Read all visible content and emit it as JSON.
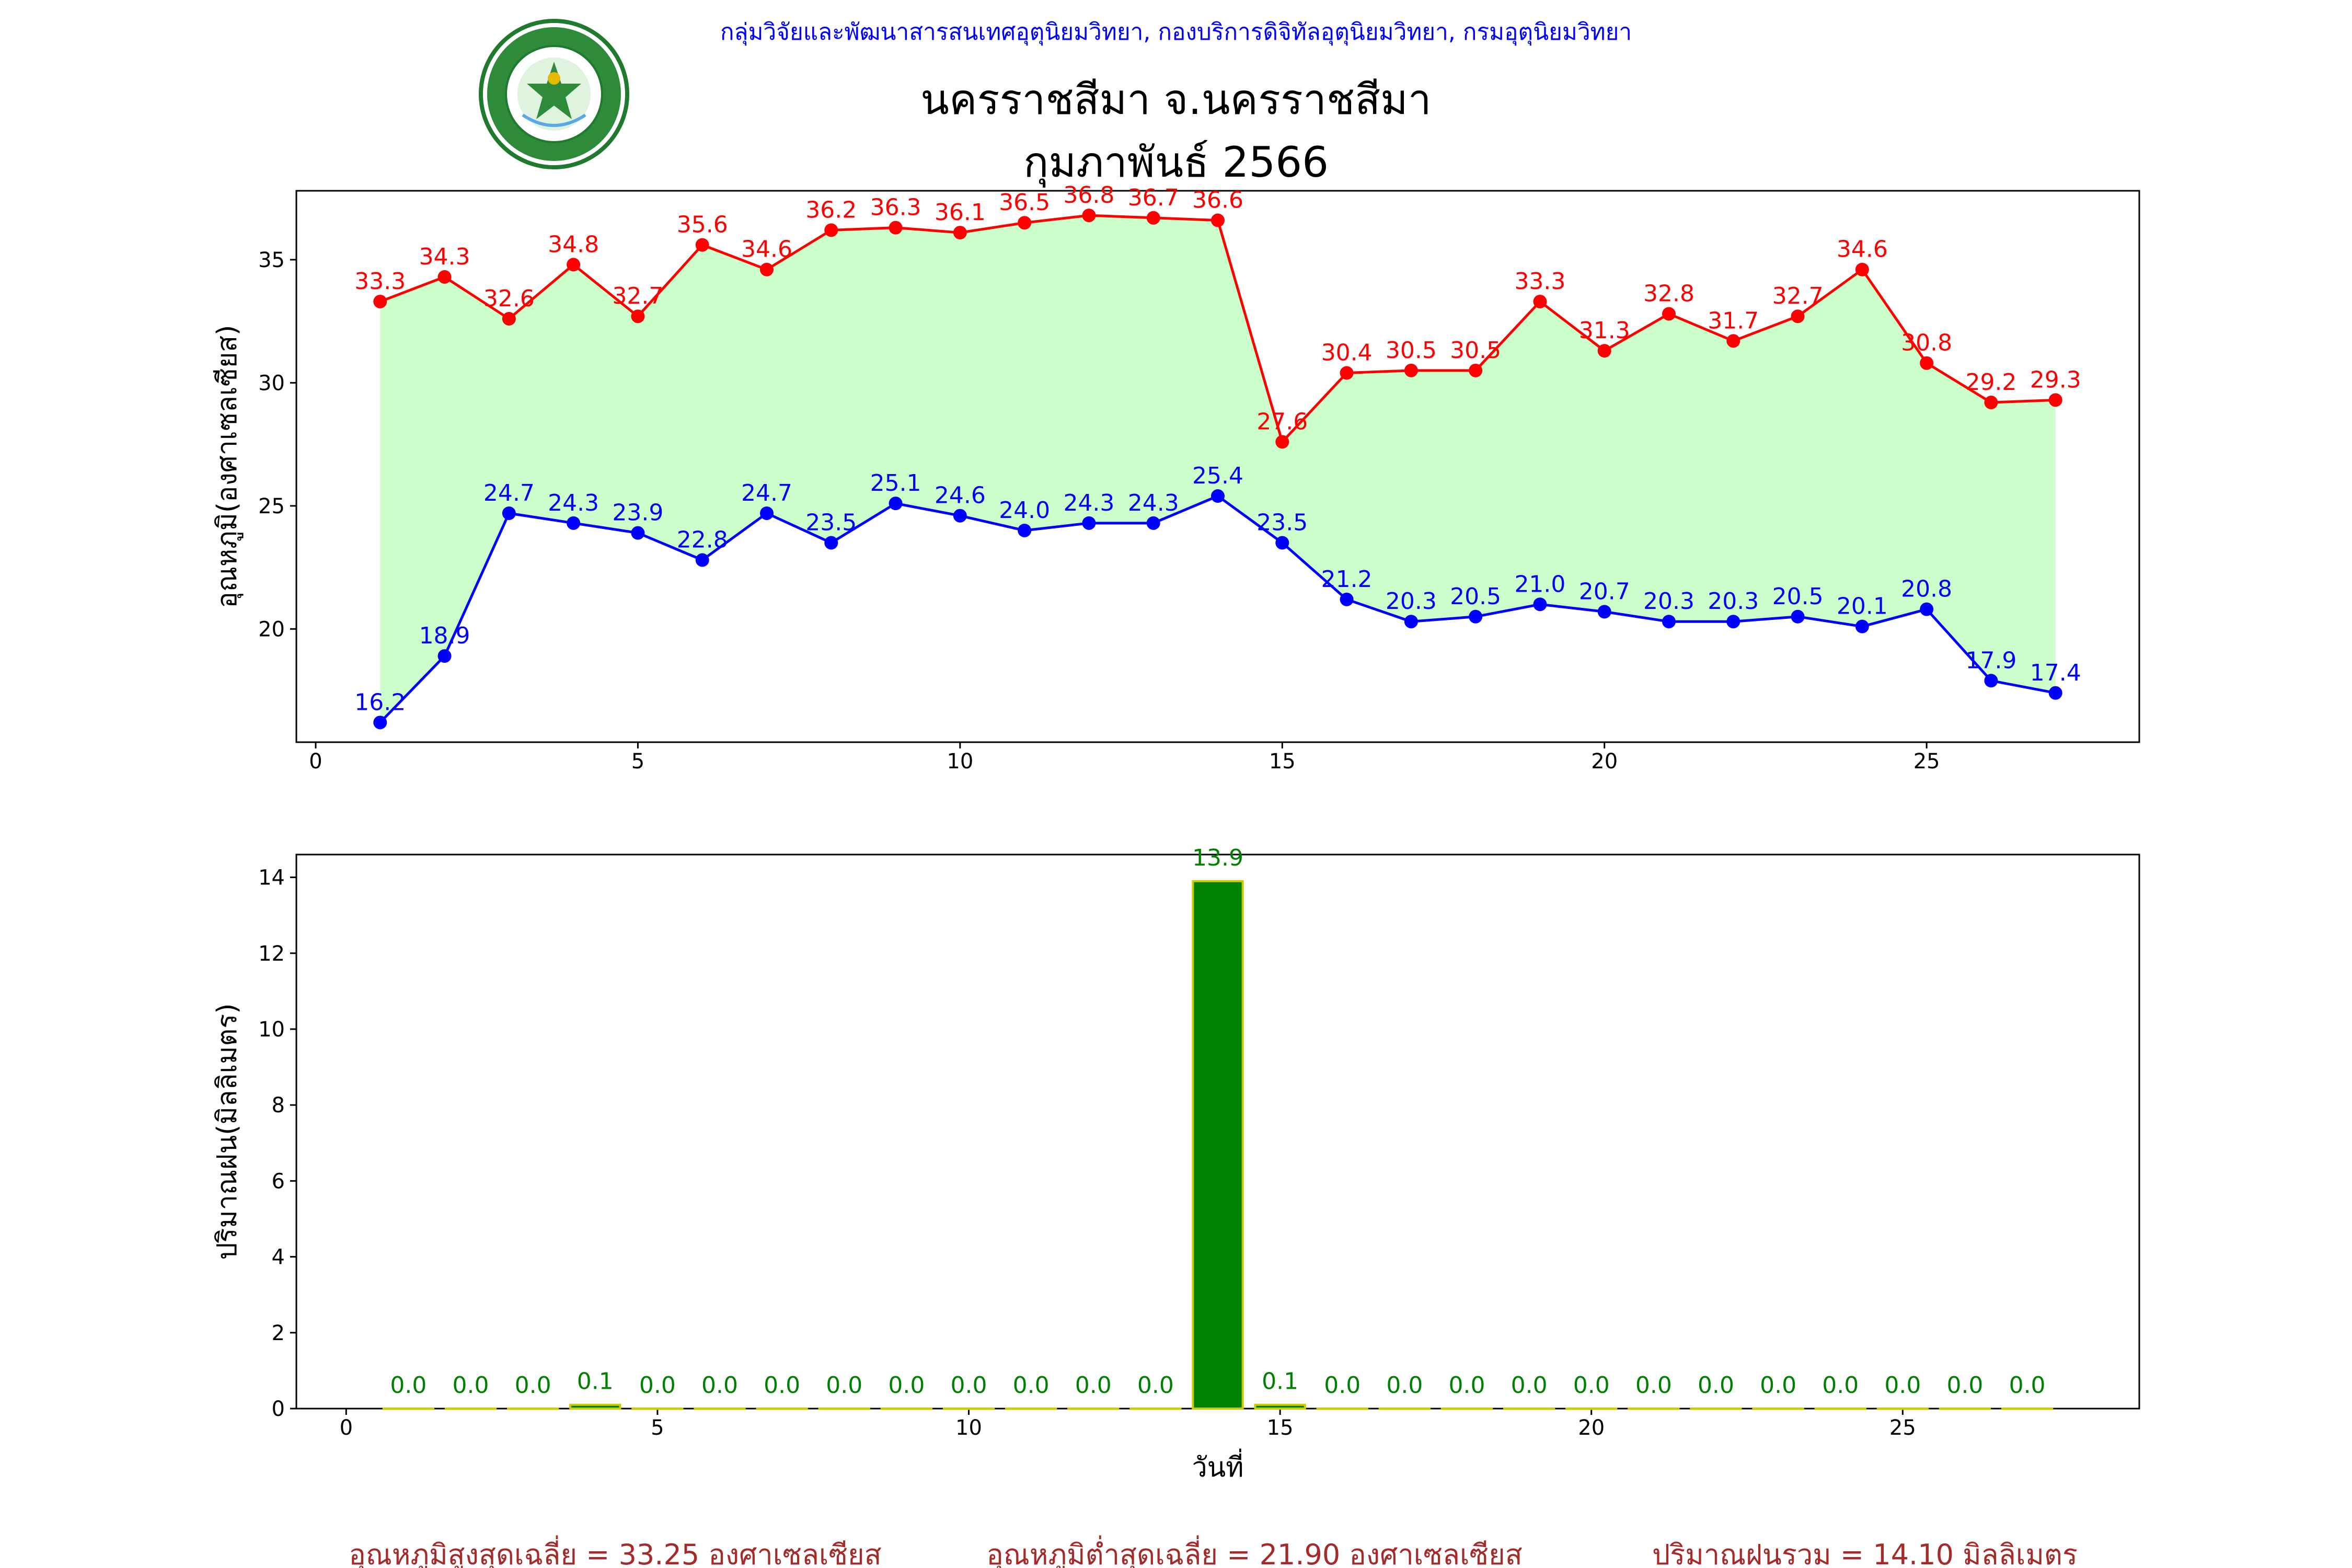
{
  "header": {
    "agency": "กลุ่มวิจัยและพัฒนาสารสนเทศอุตุนิยมวิทยา, กองบริการดิจิทัลอุตุนิยมวิทยา, กรมอุตุนิยมวิทยา",
    "station": "นครราชสีมา จ.นครราชสีมา",
    "period": "กุมภาพันธ์ 2566",
    "logo_text": "กรมอุตุนิยมวิทยา",
    "logo_text_en": "METEOROLOGICAL DEPARTMENT"
  },
  "colors": {
    "max_line": "#ff0000",
    "min_line": "#0000ff",
    "fill": "#ccffcc",
    "bar_fill": "#008000",
    "bar_edge": "#cccc00",
    "bar_label": "#008000",
    "footer": "#a52a2a",
    "agency": "#0000ff"
  },
  "chart_data": [
    {
      "type": "line",
      "ylabel": "อุณหภูมิ(องศาเซลเซียส)",
      "xlim": [
        -0.3,
        28.3
      ],
      "ylim": [
        15.4,
        37.8
      ],
      "xticks": [
        0,
        5,
        10,
        15,
        20,
        25
      ],
      "yticks": [
        20,
        25,
        30,
        35
      ],
      "x": [
        1,
        2,
        3,
        4,
        5,
        6,
        7,
        8,
        9,
        10,
        11,
        12,
        13,
        14,
        15,
        16,
        17,
        18,
        19,
        20,
        21,
        22,
        23,
        24,
        25,
        26,
        27
      ],
      "series": [
        {
          "name": "max",
          "values": [
            33.3,
            34.3,
            32.6,
            34.8,
            32.7,
            35.6,
            34.6,
            36.2,
            36.3,
            36.1,
            36.5,
            36.8,
            36.7,
            36.6,
            27.6,
            30.4,
            30.5,
            30.5,
            33.3,
            31.3,
            32.8,
            31.7,
            32.7,
            34.6,
            30.8,
            29.2,
            29.3
          ],
          "labels": [
            "33.3",
            "34.3",
            "32.6",
            "34.8",
            "32.7",
            "35.6",
            "34.6",
            "36.2",
            "36.3",
            "36.1",
            "36.5",
            "36.8",
            "36.7",
            "36.6",
            "27.6",
            "30.4",
            "30.5",
            "30.5",
            "33.3",
            "31.3",
            "32.8",
            "31.7",
            "32.7",
            "34.6",
            "30.8",
            "29.2",
            "29.3"
          ]
        },
        {
          "name": "min",
          "values": [
            16.2,
            18.9,
            24.7,
            24.3,
            23.9,
            22.8,
            24.7,
            23.5,
            25.1,
            24.6,
            24.0,
            24.3,
            24.3,
            25.4,
            23.5,
            21.2,
            20.3,
            20.5,
            21.0,
            20.7,
            20.3,
            20.3,
            20.5,
            20.1,
            20.8,
            17.9,
            17.4
          ],
          "labels": [
            "16.2",
            "18.9",
            "24.7",
            "24.3",
            "23.9",
            "22.8",
            "24.7",
            "23.5",
            "25.1",
            "24.6",
            "24.0",
            "24.3",
            "24.3",
            "25.4",
            "23.5",
            "21.2",
            "20.3",
            "20.5",
            "21.0",
            "20.7",
            "20.3",
            "20.3",
            "20.5",
            "20.1",
            "20.8",
            "17.9",
            "17.4"
          ]
        }
      ]
    },
    {
      "type": "bar",
      "ylabel": "ปริมาณฝน(มิลลิเมตร)",
      "xlabel": "วันที่",
      "xlim": [
        -0.8,
        28.8
      ],
      "ylim": [
        0,
        14.6
      ],
      "xticks": [
        0,
        5,
        10,
        15,
        20,
        25
      ],
      "yticks": [
        0,
        2,
        4,
        6,
        8,
        10,
        12,
        14
      ],
      "x": [
        1,
        2,
        3,
        4,
        5,
        6,
        7,
        8,
        9,
        10,
        11,
        12,
        13,
        14,
        15,
        16,
        17,
        18,
        19,
        20,
        21,
        22,
        23,
        24,
        25,
        26,
        27
      ],
      "values": [
        0.0,
        0.0,
        0.0,
        0.1,
        0.0,
        0.0,
        0.0,
        0.0,
        0.0,
        0.0,
        0.0,
        0.0,
        0.0,
        13.9,
        0.1,
        0.0,
        0.0,
        0.0,
        0.0,
        0.0,
        0.0,
        0.0,
        0.0,
        0.0,
        0.0,
        0.0,
        0.0
      ],
      "labels": [
        "0.0",
        "0.0",
        "0.0",
        "0.1",
        "0.0",
        "0.0",
        "0.0",
        "0.0",
        "0.0",
        "0.0",
        "0.0",
        "0.0",
        "0.0",
        "13.9",
        "0.1",
        "0.0",
        "0.0",
        "0.0",
        "0.0",
        "0.0",
        "0.0",
        "0.0",
        "0.0",
        "0.0",
        "0.0",
        "0.0",
        "0.0"
      ]
    }
  ],
  "footer": {
    "avg_max": "อุณหภูมิสูงสุดเฉลี่ย = 33.25 องศาเซลเซียส",
    "avg_min": "อุณหภูมิต่ำสุดเฉลี่ย = 21.90 องศาเซลเซียส",
    "total_rain": "ปริมาณฝนรวม = 14.10 มิลลิเมตร"
  }
}
